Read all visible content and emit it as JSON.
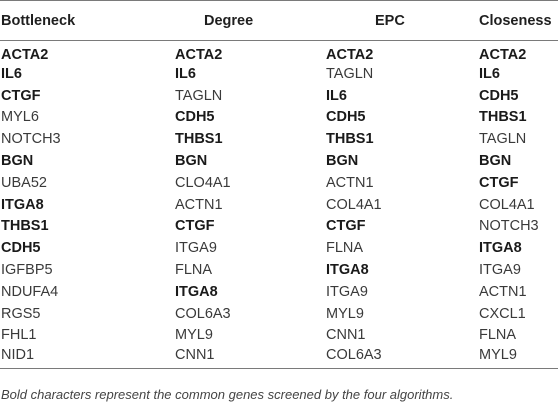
{
  "table": {
    "headers": [
      "Bottleneck",
      "Degree",
      "EPC",
      "Closeness"
    ],
    "rows": [
      [
        {
          "text": "ACTA2",
          "bold": true
        },
        {
          "text": "ACTA2",
          "bold": true
        },
        {
          "text": "ACTA2",
          "bold": true
        },
        {
          "text": "ACTA2",
          "bold": true
        }
      ],
      [
        {
          "text": "IL6",
          "bold": true
        },
        {
          "text": "IL6",
          "bold": true
        },
        {
          "text": "TAGLN",
          "bold": false
        },
        {
          "text": "IL6",
          "bold": true
        }
      ],
      [
        {
          "text": "CTGF",
          "bold": true
        },
        {
          "text": "TAGLN",
          "bold": false
        },
        {
          "text": "IL6",
          "bold": true
        },
        {
          "text": "CDH5",
          "bold": true
        }
      ],
      [
        {
          "text": "MYL6",
          "bold": false
        },
        {
          "text": "CDH5",
          "bold": true
        },
        {
          "text": "CDH5",
          "bold": true
        },
        {
          "text": "THBS1",
          "bold": true
        }
      ],
      [
        {
          "text": "NOTCH3",
          "bold": false
        },
        {
          "text": "THBS1",
          "bold": true
        },
        {
          "text": "THBS1",
          "bold": true
        },
        {
          "text": "TAGLN",
          "bold": false
        }
      ],
      [
        {
          "text": "BGN",
          "bold": true
        },
        {
          "text": "BGN",
          "bold": true
        },
        {
          "text": "BGN",
          "bold": true
        },
        {
          "text": "BGN",
          "bold": true
        }
      ],
      [
        {
          "text": "UBA52",
          "bold": false
        },
        {
          "text": "CLO4A1",
          "bold": false
        },
        {
          "text": "ACTN1",
          "bold": false
        },
        {
          "text": "CTGF",
          "bold": true
        }
      ],
      [
        {
          "text": "ITGA8",
          "bold": true
        },
        {
          "text": "ACTN1",
          "bold": false
        },
        {
          "text": "COL4A1",
          "bold": false
        },
        {
          "text": "COL4A1",
          "bold": false
        }
      ],
      [
        {
          "text": "THBS1",
          "bold": true
        },
        {
          "text": "CTGF",
          "bold": true
        },
        {
          "text": "CTGF",
          "bold": true
        },
        {
          "text": "NOTCH3",
          "bold": false
        }
      ],
      [
        {
          "text": "CDH5",
          "bold": true
        },
        {
          "text": "ITGA9",
          "bold": false
        },
        {
          "text": "FLNA",
          "bold": false
        },
        {
          "text": "ITGA8",
          "bold": true
        }
      ],
      [
        {
          "text": "IGFBP5",
          "bold": false
        },
        {
          "text": "FLNA",
          "bold": false
        },
        {
          "text": "ITGA8",
          "bold": true
        },
        {
          "text": "ITGA9",
          "bold": false
        }
      ],
      [
        {
          "text": "NDUFA4",
          "bold": false
        },
        {
          "text": "ITGA8",
          "bold": true
        },
        {
          "text": "ITGA9",
          "bold": false
        },
        {
          "text": "ACTN1",
          "bold": false
        }
      ],
      [
        {
          "text": "RGS5",
          "bold": false
        },
        {
          "text": "COL6A3",
          "bold": false
        },
        {
          "text": "MYL9",
          "bold": false
        },
        {
          "text": "CXCL1",
          "bold": false
        }
      ],
      [
        {
          "text": "FHL1",
          "bold": false
        },
        {
          "text": "MYL9",
          "bold": false
        },
        {
          "text": "CNN1",
          "bold": false
        },
        {
          "text": "FLNA",
          "bold": false
        }
      ],
      [
        {
          "text": "NID1",
          "bold": false
        },
        {
          "text": "CNN1",
          "bold": false
        },
        {
          "text": "COL6A3",
          "bold": false
        },
        {
          "text": "MYL9",
          "bold": false
        }
      ]
    ]
  },
  "caption": "Bold characters represent the common genes screened by the four algorithms."
}
